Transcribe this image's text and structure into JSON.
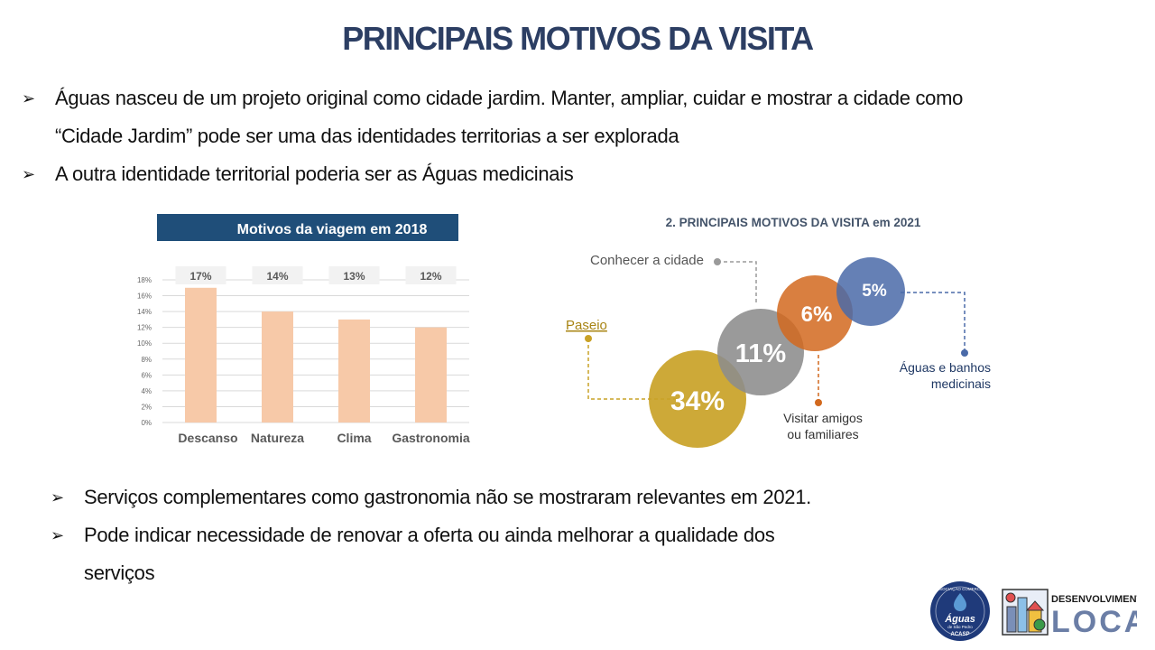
{
  "title": "PRINCIPAIS MOTIVOS DA VISITA",
  "bullets_top": [
    "Águas nasceu de um projeto original como cidade jardim.  Manter, ampliar, cuidar e mostrar a cidade como “Cidade Jardim” pode ser uma das identidades territorias a ser explorada",
    "A outra identidade territorial poderia ser as Águas medicinais"
  ],
  "bullets_bottom": [
    "Serviços complementares como gastronomia não se mostraram relevantes em 2021.",
    "Pode indicar necessidade de renovar a oferta ou ainda melhorar a qualidade dos serviços"
  ],
  "chart_data": [
    {
      "type": "bar",
      "title": "Motivos da viagem em 2018",
      "categories": [
        "Descanso",
        "Natureza",
        "Clima",
        "Gastronomia"
      ],
      "values": [
        17,
        14,
        13,
        12
      ],
      "data_labels": [
        "17%",
        "14%",
        "13%",
        "12%"
      ],
      "yticks": [
        "0%",
        "2%",
        "4%",
        "6%",
        "8%",
        "10%",
        "12%",
        "14%",
        "16%",
        "18%"
      ],
      "ylim": [
        0,
        18
      ],
      "grid": true,
      "bar_color": "#f7c9a8",
      "title_bg": "#1f4e79"
    },
    {
      "type": "bubble",
      "title": "2. PRINCIPAIS MOTIVOS DA VISITA em 2021",
      "items": [
        {
          "label": "Paseio",
          "value_label": "34%",
          "value": 34,
          "color": "#c9a227",
          "label_color": "#a88413"
        },
        {
          "label": "Conhecer a cidade",
          "value_label": "11%",
          "value": 11,
          "color": "#8c8c8c",
          "label_color": "#555555"
        },
        {
          "label": "Visitar amigos ou familiares",
          "value_label": "6%",
          "value": 6,
          "color": "#d2691e",
          "label_color": "#333333"
        },
        {
          "label": "Águas e banhos medicinais",
          "value_label": "5%",
          "value": 5,
          "color": "#4a6aa8",
          "label_color": "#1f3864"
        }
      ]
    }
  ],
  "logos": {
    "acasp": {
      "arc_text": "ASSOCIAÇÃO COMERCIAL",
      "name": "Águas",
      "sub": "de São Pedro",
      "abbr": "ACASP",
      "color": "#1f3a7a"
    },
    "dev": {
      "line1": "DESENVOLVIMENTO",
      "line2": "LOCAL",
      "color": "#6b7ea6"
    }
  }
}
